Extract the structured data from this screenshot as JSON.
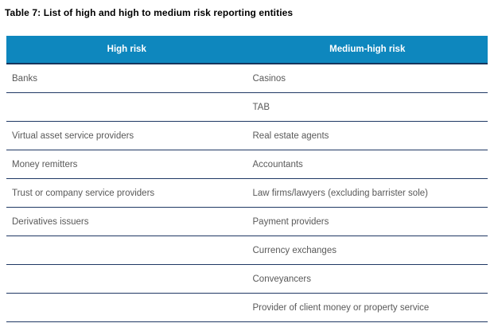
{
  "title": "Table 7: List of high and high to medium risk reporting entities",
  "table": {
    "columns": [
      {
        "label": "High risk"
      },
      {
        "label": "Medium-high risk"
      }
    ],
    "rows": [
      {
        "high_risk": "Banks",
        "medium_high_risk": "Casinos"
      },
      {
        "high_risk": "",
        "medium_high_risk": "TAB"
      },
      {
        "high_risk": "Virtual asset service providers",
        "medium_high_risk": "Real estate agents"
      },
      {
        "high_risk": "Money remitters",
        "medium_high_risk": "Accountants"
      },
      {
        "high_risk": "Trust or company service providers",
        "medium_high_risk": "Law firms/lawyers (excluding barrister sole)"
      },
      {
        "high_risk": "Derivatives issuers",
        "medium_high_risk": "Payment providers"
      },
      {
        "high_risk": "",
        "medium_high_risk": "Currency exchanges"
      },
      {
        "high_risk": "",
        "medium_high_risk": "Conveyancers"
      },
      {
        "high_risk": "",
        "medium_high_risk": "Provider of client money or property service"
      }
    ]
  },
  "colors": {
    "header_bg": "#0E87BE",
    "header_text": "#FFFFFF",
    "divider": "#1F3864",
    "header_divider": "#17365D",
    "cell_text": "#595959",
    "title_text": "#000000",
    "page_bg": "#FFFFFF"
  }
}
